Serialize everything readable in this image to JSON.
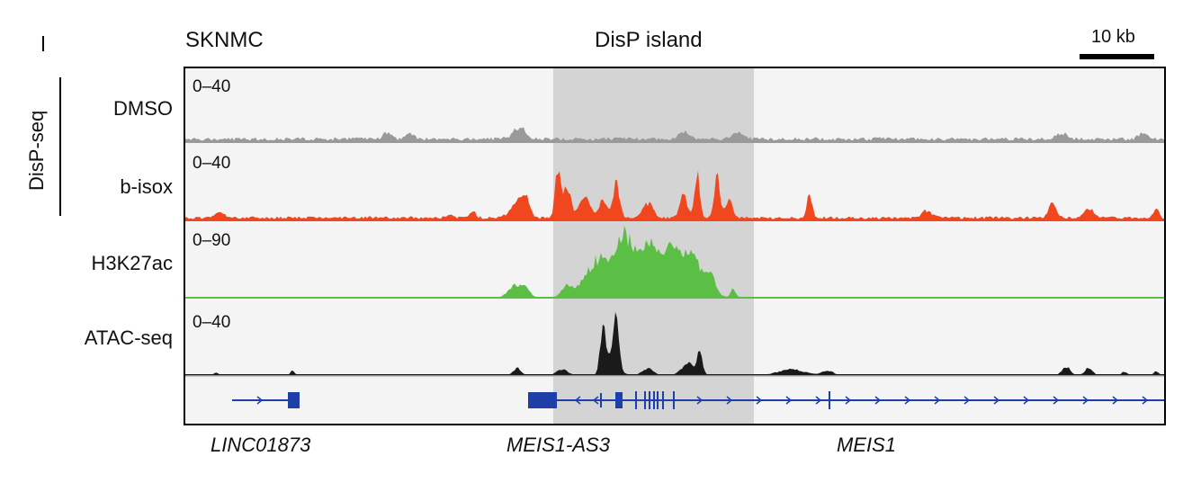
{
  "header": {
    "cell_line": "SKNMC",
    "region_label": "DisP island",
    "scale_label": "10 kb"
  },
  "group": {
    "label": "DisP-seq"
  },
  "tracks": [
    {
      "name": "DMSO",
      "range": "0–40",
      "color": "#9a9a9a"
    },
    {
      "name": "b-isox",
      "range": "0–40",
      "color": "#f0471e"
    },
    {
      "name": "H3K27ac",
      "range": "0–90",
      "color": "#5cbf45"
    },
    {
      "name": "ATAC-seq",
      "range": "0–40",
      "color": "#1a1a1a"
    }
  ],
  "genes": [
    {
      "name": "LINC01873"
    },
    {
      "name": "MEIS1-AS3"
    },
    {
      "name": "MEIS1"
    }
  ],
  "colors": {
    "highlight": "#d4d4d4",
    "gene_model": "#1f3fa8",
    "panel_bg": "#f4f4f4",
    "frame": "#000000"
  }
}
